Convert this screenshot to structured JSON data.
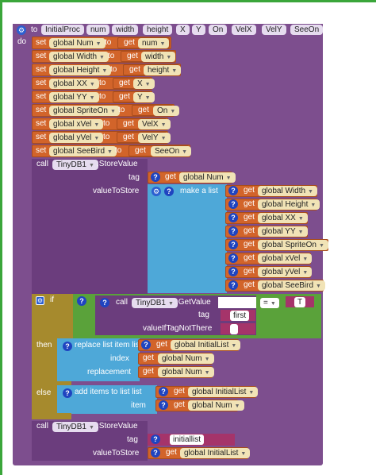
{
  "procedure": {
    "to_label": "to",
    "name": "InitialProc",
    "params": [
      "num",
      "width",
      "height",
      "X",
      "Y",
      "On",
      "VelX",
      "VelY",
      "SeeOn"
    ],
    "do_label": "do"
  },
  "set_label": "set",
  "to_word": "to",
  "get_label": "get",
  "sets": [
    {
      "var": "global Num",
      "val": "num"
    },
    {
      "var": "global Width",
      "val": "width"
    },
    {
      "var": "global Height",
      "val": "height"
    },
    {
      "var": "global XX",
      "val": "X"
    },
    {
      "var": "global YY",
      "val": "Y"
    },
    {
      "var": "global SpriteOn",
      "val": "On"
    },
    {
      "var": "global xVel",
      "val": "VelX"
    },
    {
      "var": "global yVel",
      "val": "VelY"
    },
    {
      "var": "global SeeBird",
      "val": "SeeOn"
    }
  ],
  "store1": {
    "call": "call",
    "component": "TinyDB1",
    "method": ".StoreValue",
    "tag_label": "tag",
    "tag_var": "global Num",
    "value_label": "valueToStore",
    "make_list": "make a list",
    "items": [
      "global Width",
      "global Height",
      "global XX",
      "global YY",
      "global SpriteOn",
      "global xVel",
      "global yVel",
      "global SeeBird"
    ]
  },
  "if_block": {
    "if_label": "if",
    "call": "call",
    "component": "TinyDB1",
    "method": ".GetValue",
    "tag_label": "tag",
    "tag_value": "first",
    "default_label": "valueIfTagNotThere",
    "eq": "=",
    "true_value": "T",
    "then_label": "then",
    "replace_label": "replace list item  list",
    "list_var": "global InitialList",
    "index_label": "index",
    "index_var": "global Num",
    "replacement_label": "replacement",
    "replacement_var": "global Num",
    "else_label": "else",
    "add_label": "add items to list  list",
    "add_list_var": "global InitialList",
    "item_label": "item",
    "item_var": "global Num"
  },
  "store2": {
    "call": "call",
    "component": "TinyDB1",
    "method": ".StoreValue",
    "tag_label": "tag",
    "tag_value": "initiallist",
    "value_label": "valueToStore",
    "value_var": "global InitialList"
  },
  "colors": {
    "procedure": "#7d4e8e",
    "variable": "#d2642a",
    "control": "#a68a2d",
    "logic": "#5aa23a",
    "list": "#4ea8d8",
    "text": "#a5346a"
  }
}
